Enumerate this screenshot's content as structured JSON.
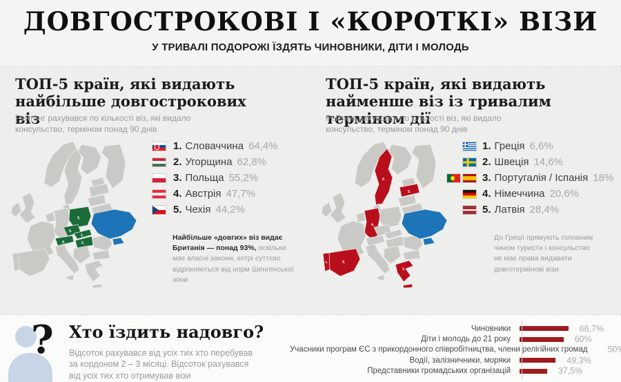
{
  "header": {
    "title": "ДОВГОСТРОКОВІ І «КОРОТКІ» ВІЗИ",
    "subtitle": "У ТРИВАЛІ ПОДОРОЖІ ЇЗДЯТЬ ЧИНОВНИКИ, ДІТИ І МОЛОДЬ"
  },
  "colors": {
    "green": "#1a6b38",
    "red": "#b90f1d",
    "blue": "#1d74b8",
    "bar_red": "#9e1b1e",
    "map_gray": "#c9c9c5",
    "icon_blue": "#c7d5e6"
  },
  "left_panel": {
    "heading": "ТОП-5 країн, які видають найбільше довгострокових віз",
    "subheading": "Рейтинг рахувався по кількості віз, які видало консульство, терміном понад 90 днів",
    "ranking": [
      {
        "rank": "1.",
        "country": "Словаччина",
        "value": "64,4%",
        "flags": [
          "slovakia"
        ]
      },
      {
        "rank": "2.",
        "country": "Угорщина",
        "value": "62,8%",
        "flags": [
          "hungary"
        ]
      },
      {
        "rank": "3.",
        "country": "Польща",
        "value": "55,2%",
        "flags": [
          "poland"
        ]
      },
      {
        "rank": "4.",
        "country": "Австрія",
        "value": "47,7%",
        "flags": [
          "austria"
        ]
      },
      {
        "rank": "5.",
        "country": "Чехія",
        "value": "44,2%",
        "flags": [
          "czechia"
        ]
      }
    ],
    "note_bold": "Найбільше «довгих» віз видає Британія — понад 93%,",
    "note_rest": " оскільки має власні закони, котрі суттєво відрізняються від норм Шенгенської зони",
    "map_labels": {
      "slovakia": "1.",
      "hungary": "2.",
      "poland": "3.",
      "austria": "4.",
      "czechia": "5."
    }
  },
  "right_panel": {
    "heading": "ТОП-5 країн, які видають найменше віз із тривалим терміном дії",
    "subheading": "Рейтинг рахувався по кількості віз, які видало консульство, терміном понад 90 днів",
    "ranking": [
      {
        "rank": "1.",
        "country": "Греція",
        "value": "6,6%",
        "flags": [
          "greece"
        ]
      },
      {
        "rank": "2.",
        "country": "Швеція",
        "value": "14,6%",
        "flags": [
          "sweden"
        ]
      },
      {
        "rank": "3.",
        "country": "Португалія / Іспанія",
        "value": "18%",
        "flags": [
          "portugal",
          "spain"
        ]
      },
      {
        "rank": "4.",
        "country": "Німеччина",
        "value": "20,6%",
        "flags": [
          "germany"
        ]
      },
      {
        "rank": "5.",
        "country": "Латвія",
        "value": "28,4%",
        "flags": [
          "latvia"
        ]
      }
    ],
    "note": "До Греції прямують головним чином туристи і консульство не має права видавати довготермінові візи",
    "map_labels": {
      "greece": "1.",
      "sweden": "2.",
      "spain": "3.",
      "portugal": "3.",
      "germany": "4.",
      "latvia": "5."
    }
  },
  "who_goes": {
    "heading": "Хто їздить надовго?",
    "description": "Відсоток рахувався від усіх тих хто перебував за кордоном 2 – 3 місяці. Відсоток рахувався від усіх тих хто отримував візи"
  },
  "chart_data": [
    {
      "type": "bar",
      "title": "ТОП-5 країн, які видають найбільше довгострокових віз",
      "categories": [
        "Словаччина",
        "Угорщина",
        "Польща",
        "Австрія",
        "Чехія"
      ],
      "values": [
        64.4,
        62.8,
        55.2,
        47.7,
        44.2
      ],
      "unit": "%"
    },
    {
      "type": "bar",
      "title": "ТОП-5 країн, які видають найменше віз із тривалим терміном дії",
      "categories": [
        "Греція",
        "Швеція",
        "Португалія / Іспанія",
        "Німеччина",
        "Латвія"
      ],
      "values": [
        6.6,
        14.6,
        18,
        20.6,
        28.4
      ],
      "unit": "%"
    },
    {
      "type": "bar",
      "orientation": "horizontal",
      "title": "Хто їздить надовго?",
      "categories": [
        "Чиновники",
        "Діти і молодь до 21 року",
        "Учасники програм ЄС з прикордонного співробітництва, члени релігійних громад",
        "Водії, залізничники, моряки",
        "Представники громадських організацій"
      ],
      "values": [
        66.7,
        60,
        50,
        49.3,
        37.5
      ],
      "value_labels": [
        "66,7%",
        "60%",
        "50%",
        "49,3%",
        "37,5%"
      ],
      "xlim": [
        0,
        100
      ],
      "bar_color": "#9e1b1e",
      "legend": false
    }
  ]
}
